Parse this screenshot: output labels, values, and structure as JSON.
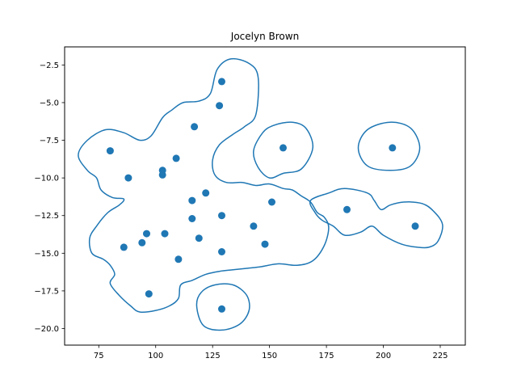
{
  "chart_data": {
    "type": "scatter",
    "title": "Jocelyn Brown",
    "xlabel": "",
    "ylabel": "",
    "xlim": [
      60,
      236
    ],
    "ylim": [
      -21.1,
      -1.3
    ],
    "xticks": [
      75,
      100,
      125,
      150,
      175,
      200,
      225
    ],
    "yticks": [
      -2.5,
      -5.0,
      -7.5,
      -10.0,
      -12.5,
      -15.0,
      -17.5,
      -20.0
    ],
    "xtick_labels": [
      "75",
      "100",
      "125",
      "150",
      "175",
      "200",
      "225"
    ],
    "ytick_labels": [
      "−2.5",
      "−5.0",
      "−7.5",
      "−10.0",
      "−12.5",
      "−15.0",
      "−17.5",
      "−20.0"
    ],
    "grid": false,
    "color": "#1f77b4",
    "points": [
      {
        "x": 129,
        "y": -3.6
      },
      {
        "x": 128,
        "y": -5.2
      },
      {
        "x": 117,
        "y": -6.6
      },
      {
        "x": 80,
        "y": -8.2
      },
      {
        "x": 109,
        "y": -8.7
      },
      {
        "x": 103,
        "y": -9.5
      },
      {
        "x": 103,
        "y": -9.8
      },
      {
        "x": 88,
        "y": -10.0
      },
      {
        "x": 156,
        "y": -8.0
      },
      {
        "x": 204,
        "y": -8.0
      },
      {
        "x": 122,
        "y": -11.0
      },
      {
        "x": 116,
        "y": -11.5
      },
      {
        "x": 151,
        "y": -11.6
      },
      {
        "x": 184,
        "y": -12.1
      },
      {
        "x": 116,
        "y": -12.7
      },
      {
        "x": 129,
        "y": -12.5
      },
      {
        "x": 143,
        "y": -13.2
      },
      {
        "x": 214,
        "y": -13.2
      },
      {
        "x": 96,
        "y": -13.7
      },
      {
        "x": 104,
        "y": -13.7
      },
      {
        "x": 119,
        "y": -14.0
      },
      {
        "x": 94,
        "y": -14.3
      },
      {
        "x": 148,
        "y": -14.4
      },
      {
        "x": 86,
        "y": -14.6
      },
      {
        "x": 129,
        "y": -14.9
      },
      {
        "x": 110,
        "y": -15.4
      },
      {
        "x": 97,
        "y": -17.7
      },
      {
        "x": 129,
        "y": -18.7
      }
    ],
    "contours": [
      [
        [
          66,
          -8.5
        ],
        [
          70,
          -7.5
        ],
        [
          78,
          -6.8
        ],
        [
          86,
          -7.0
        ],
        [
          93,
          -7.5
        ],
        [
          98,
          -7.2
        ],
        [
          103,
          -6.0
        ],
        [
          107,
          -5.5
        ],
        [
          112,
          -5.0
        ],
        [
          119,
          -4.9
        ],
        [
          124,
          -4.4
        ],
        [
          127,
          -2.8
        ],
        [
          133,
          -2.1
        ],
        [
          141,
          -2.4
        ],
        [
          145,
          -3.3
        ],
        [
          144,
          -5.8
        ],
        [
          139,
          -6.6
        ],
        [
          134,
          -7.1
        ],
        [
          128,
          -7.8
        ],
        [
          125,
          -8.8
        ],
        [
          126,
          -9.8
        ],
        [
          131,
          -10.3
        ],
        [
          138,
          -10.3
        ],
        [
          144,
          -10.5
        ],
        [
          150,
          -10.4
        ],
        [
          156,
          -10.7
        ],
        [
          160,
          -10.8
        ],
        [
          164,
          -11.2
        ],
        [
          168,
          -11.6
        ],
        [
          171,
          -12.3
        ],
        [
          174,
          -12.6
        ],
        [
          176,
          -13.3
        ],
        [
          174,
          -14.5
        ],
        [
          169,
          -15.5
        ],
        [
          162,
          -15.8
        ],
        [
          154,
          -15.7
        ],
        [
          146,
          -15.9
        ],
        [
          140,
          -16.0
        ],
        [
          134,
          -16.1
        ],
        [
          128,
          -16.2
        ],
        [
          122,
          -16.4
        ],
        [
          116,
          -16.8
        ],
        [
          111,
          -17.1
        ],
        [
          110,
          -18.0
        ],
        [
          106,
          -18.5
        ],
        [
          100,
          -18.8
        ],
        [
          93,
          -18.9
        ],
        [
          89,
          -18.5
        ],
        [
          84,
          -17.8
        ],
        [
          80,
          -17.0
        ],
        [
          82,
          -16.4
        ],
        [
          80,
          -15.8
        ],
        [
          77,
          -15.4
        ],
        [
          72,
          -15.0
        ],
        [
          71,
          -14.0
        ],
        [
          74,
          -13.2
        ],
        [
          79,
          -12.3
        ],
        [
          84,
          -11.8
        ],
        [
          86,
          -11.4
        ],
        [
          81,
          -11.3
        ],
        [
          76,
          -10.8
        ],
        [
          74,
          -10.0
        ],
        [
          70,
          -9.5
        ],
        [
          66,
          -8.5
        ]
      ],
      [
        [
          143,
          -8.2
        ],
        [
          147,
          -7.0
        ],
        [
          152,
          -6.5
        ],
        [
          160,
          -6.3
        ],
        [
          166,
          -6.7
        ],
        [
          169,
          -8.0
        ],
        [
          164,
          -9.4
        ],
        [
          156,
          -9.7
        ],
        [
          150,
          -10.0
        ],
        [
          145,
          -9.3
        ],
        [
          143,
          -8.2
        ]
      ],
      [
        [
          189,
          -8.0
        ],
        [
          193,
          -6.8
        ],
        [
          203,
          -6.3
        ],
        [
          212,
          -6.7
        ],
        [
          216,
          -8.0
        ],
        [
          212,
          -9.2
        ],
        [
          203,
          -9.5
        ],
        [
          193,
          -9.2
        ],
        [
          189,
          -8.0
        ]
      ],
      [
        [
          168,
          -11.5
        ],
        [
          176,
          -11.0
        ],
        [
          183,
          -10.7
        ],
        [
          193,
          -11.0
        ],
        [
          196,
          -11.5
        ],
        [
          199,
          -12.1
        ],
        [
          203,
          -11.8
        ],
        [
          209,
          -11.6
        ],
        [
          217,
          -11.7
        ],
        [
          222,
          -12.2
        ],
        [
          226,
          -13.1
        ],
        [
          224,
          -14.2
        ],
        [
          220,
          -14.6
        ],
        [
          215,
          -14.6
        ],
        [
          208,
          -14.4
        ],
        [
          200,
          -13.8
        ],
        [
          195,
          -13.2
        ],
        [
          190,
          -13.6
        ],
        [
          183,
          -13.8
        ],
        [
          178,
          -13.2
        ],
        [
          173,
          -12.8
        ],
        [
          170,
          -12.3
        ],
        [
          168,
          -11.5
        ]
      ],
      [
        [
          118,
          -18.5
        ],
        [
          120,
          -17.6
        ],
        [
          126,
          -17.1
        ],
        [
          134,
          -17.1
        ],
        [
          140,
          -17.8
        ],
        [
          141,
          -18.8
        ],
        [
          137,
          -19.7
        ],
        [
          129,
          -20.1
        ],
        [
          121,
          -19.8
        ],
        [
          118,
          -18.5
        ]
      ]
    ]
  }
}
